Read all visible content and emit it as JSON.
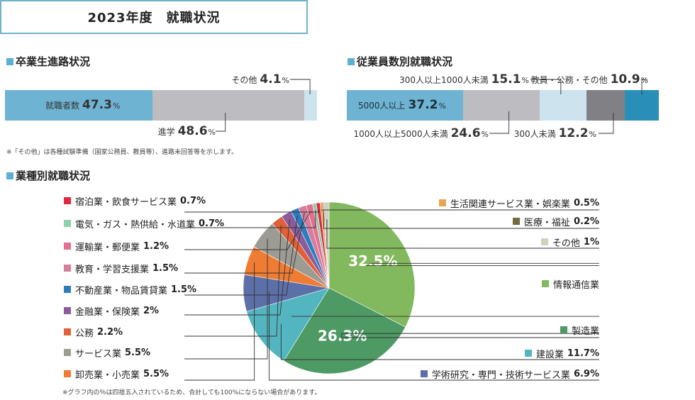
{
  "page_title": "2023年度　就職状況",
  "sections": {
    "career_path": "卒業生進路状況",
    "company_size": "従業員数別就職状況",
    "industry": "業種別就職状況"
  },
  "notes": {
    "other_note": "※「その他」は各種試験準備（国家公務員、教員等）、進路未回答等を示します。",
    "rounding_note": "※グラフ内の％は四捨五入されているため、合計しても100%にならない場合があります。"
  },
  "chart_data": [
    {
      "type": "bar",
      "orientation": "horizontal-stacked-100",
      "title": "卒業生進路状況",
      "categories": [
        "就職者数",
        "進学",
        "その他"
      ],
      "values": [
        47.3,
        48.6,
        4.1
      ],
      "colors": [
        "#6fb3d2",
        "#bdbdc1",
        "#cde3ee"
      ],
      "unit": "%"
    },
    {
      "type": "bar",
      "orientation": "horizontal-stacked-100",
      "title": "従業員数別就職状況",
      "categories": [
        "5000人以上",
        "1000人以上5000人未満",
        "300人以上1000人未満",
        "300人未満",
        "教員・公務・その他"
      ],
      "values": [
        37.2,
        24.6,
        15.1,
        12.2,
        10.9
      ],
      "colors": [
        "#6fb3d2",
        "#bdbdc1",
        "#cde3ee",
        "#818185",
        "#2a8fb8"
      ],
      "unit": "%"
    },
    {
      "type": "pie",
      "title": "業種別就職状況",
      "categories": [
        "情報通信業",
        "製造業",
        "建設業",
        "学術研究・専門・技術サービス業",
        "卸売業・小売業",
        "サービス業",
        "公務",
        "金融業・保険業",
        "不動産業・物品賃貸業",
        "教育・学習支援業",
        "運輸業・郵便業",
        "電気・ガス・熱供給・水道業",
        "宿泊業・飲食サービス業",
        "生活関連サービス業・娯楽業",
        "医療・福祉",
        "その他"
      ],
      "values": [
        32.5,
        26.3,
        11.7,
        6.9,
        5.5,
        5.5,
        2.2,
        2.0,
        1.5,
        1.5,
        1.2,
        0.7,
        0.7,
        0.5,
        0.2,
        1.0
      ],
      "colors": [
        "#82b85e",
        "#4e9a64",
        "#53b5bf",
        "#5d6fa8",
        "#ef7c33",
        "#9c9c94",
        "#e0603a",
        "#8a5c9c",
        "#2b7dbd",
        "#d57d9c",
        "#e46f8e",
        "#8fcfb1",
        "#e0283e",
        "#e8a553",
        "#746a3d",
        "#d2d0c0"
      ],
      "inner_labels": [
        "32.5%",
        "26.3%"
      ],
      "unit": "%"
    }
  ]
}
